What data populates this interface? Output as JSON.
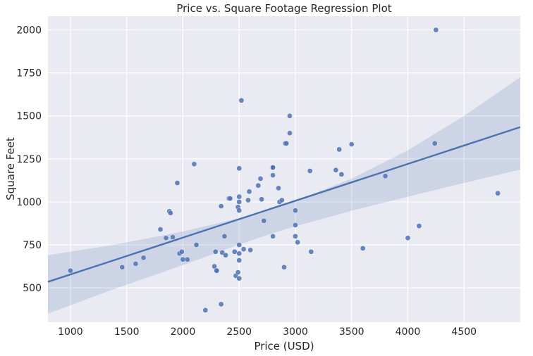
{
  "chart_data": {
    "type": "scatter",
    "title": "Price vs. Square Footage Regression Plot",
    "xlabel": "Price (USD)",
    "ylabel": "Square Feet",
    "xlim": [
      800,
      5000
    ],
    "ylim": [
      300,
      2080
    ],
    "xticks": [
      1000,
      1500,
      2000,
      2500,
      3000,
      3500,
      4000,
      4500
    ],
    "yticks": [
      500,
      750,
      1000,
      1250,
      1500,
      1750,
      2000
    ],
    "grid": true,
    "colors": {
      "background": "#eaeaf2",
      "grid": "#ffffff",
      "points": "#4c72b0",
      "regression_line": "#4c72b0",
      "confidence_band": "#4c72b0"
    },
    "regression": {
      "line": [
        [
          800,
          535
        ],
        [
          5000,
          1435
        ]
      ],
      "band_upper": [
        [
          800,
          690
        ],
        [
          1400,
          752
        ],
        [
          2000,
          828
        ],
        [
          2500,
          905
        ],
        [
          2800,
          962
        ],
        [
          3000,
          1005
        ],
        [
          3500,
          1135
        ],
        [
          4000,
          1300
        ],
        [
          4500,
          1500
        ],
        [
          5000,
          1725
        ]
      ],
      "band_lower": [
        [
          800,
          350
        ],
        [
          1400,
          496
        ],
        [
          2000,
          632
        ],
        [
          2500,
          752
        ],
        [
          2800,
          818
        ],
        [
          3000,
          858
        ],
        [
          3500,
          948
        ],
        [
          4000,
          1030
        ],
        [
          4500,
          1110
        ],
        [
          5000,
          1188
        ]
      ]
    },
    "points": [
      [
        1000,
        600
      ],
      [
        1460,
        620
      ],
      [
        1580,
        640
      ],
      [
        1650,
        675
      ],
      [
        1800,
        840
      ],
      [
        1850,
        790
      ],
      [
        1880,
        945
      ],
      [
        1890,
        935
      ],
      [
        1910,
        795
      ],
      [
        1950,
        1110
      ],
      [
        1970,
        700
      ],
      [
        1990,
        710
      ],
      [
        2000,
        665
      ],
      [
        2040,
        665
      ],
      [
        2100,
        1220
      ],
      [
        2120,
        750
      ],
      [
        2200,
        370
      ],
      [
        2280,
        625
      ],
      [
        2290,
        710
      ],
      [
        2300,
        600
      ],
      [
        2300,
        600
      ],
      [
        2340,
        975
      ],
      [
        2340,
        405
      ],
      [
        2350,
        705
      ],
      [
        2370,
        800
      ],
      [
        2380,
        690
      ],
      [
        2410,
        1020
      ],
      [
        2420,
        1020
      ],
      [
        2460,
        710
      ],
      [
        2470,
        570
      ],
      [
        2490,
        970
      ],
      [
        2490,
        590
      ],
      [
        2500,
        1030
      ],
      [
        2500,
        1000
      ],
      [
        2500,
        950
      ],
      [
        2500,
        750
      ],
      [
        2500,
        700
      ],
      [
        2500,
        660
      ],
      [
        2500,
        555
      ],
      [
        2500,
        1195
      ],
      [
        2520,
        1590
      ],
      [
        2540,
        725
      ],
      [
        2580,
        1010
      ],
      [
        2590,
        1060
      ],
      [
        2600,
        720
      ],
      [
        2670,
        1095
      ],
      [
        2690,
        1135
      ],
      [
        2700,
        1015
      ],
      [
        2720,
        890
      ],
      [
        2800,
        1200
      ],
      [
        2800,
        1200
      ],
      [
        2800,
        1155
      ],
      [
        2800,
        800
      ],
      [
        2850,
        1080
      ],
      [
        2860,
        1000
      ],
      [
        2880,
        1010
      ],
      [
        2900,
        620
      ],
      [
        2910,
        1340
      ],
      [
        2920,
        1340
      ],
      [
        2950,
        1500
      ],
      [
        2950,
        1400
      ],
      [
        3000,
        950
      ],
      [
        3000,
        865
      ],
      [
        3000,
        800
      ],
      [
        3020,
        765
      ],
      [
        3130,
        1180
      ],
      [
        3140,
        710
      ],
      [
        3360,
        1185
      ],
      [
        3390,
        1305
      ],
      [
        3410,
        1160
      ],
      [
        3500,
        1335
      ],
      [
        3600,
        730
      ],
      [
        3800,
        1150
      ],
      [
        4000,
        790
      ],
      [
        4100,
        860
      ],
      [
        4250,
        2000
      ],
      [
        4240,
        1340
      ],
      [
        4800,
        1050
      ]
    ]
  }
}
